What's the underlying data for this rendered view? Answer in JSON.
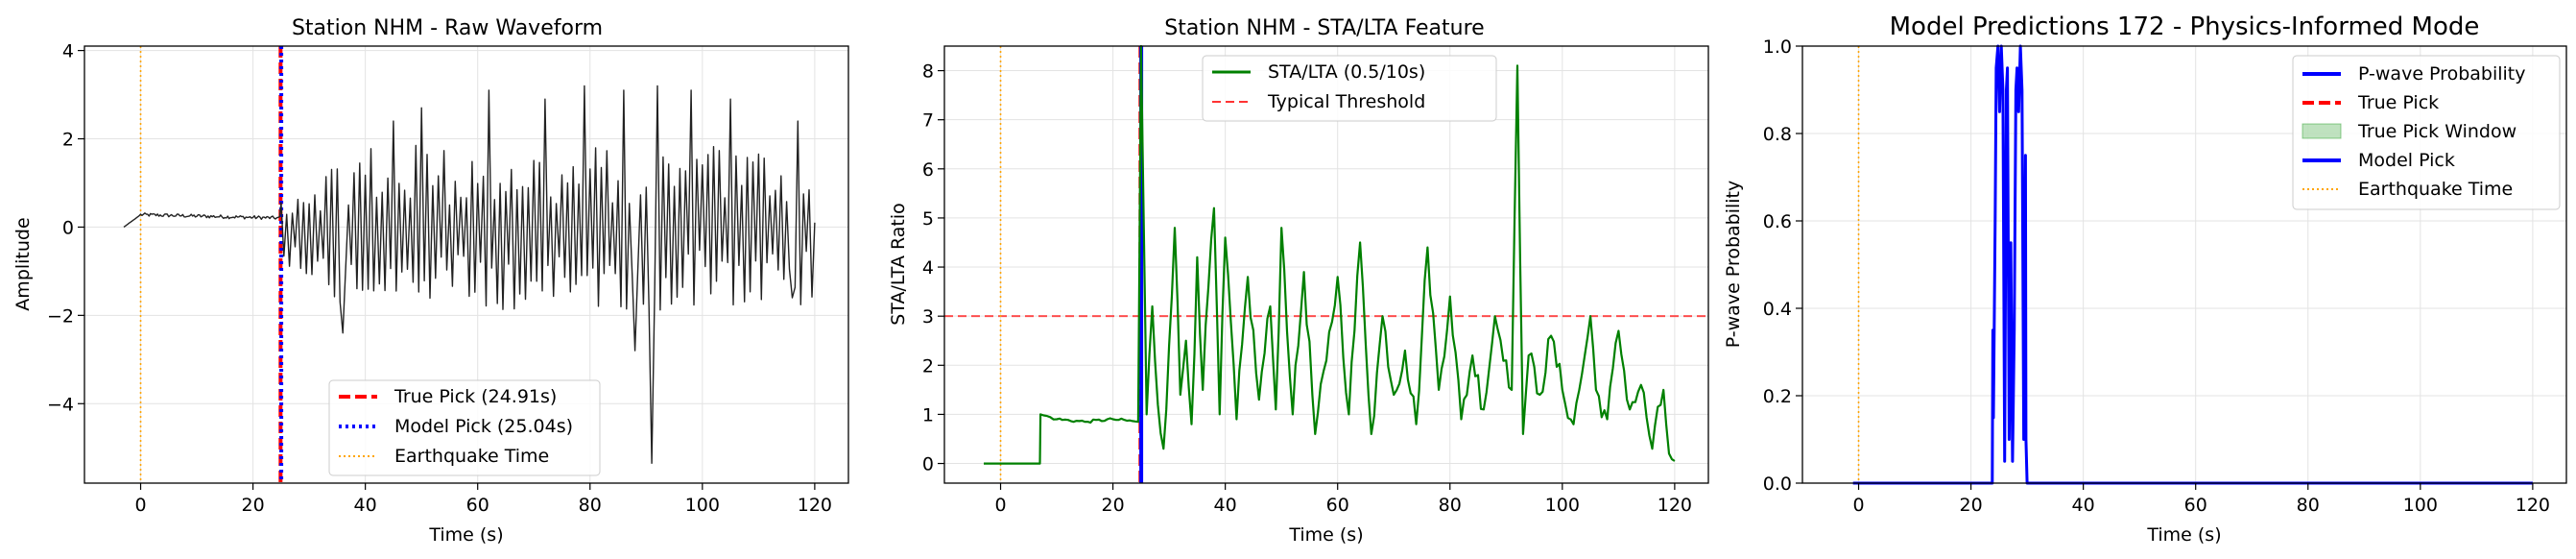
{
  "chart_data": [
    {
      "type": "line",
      "title": "Station NHM - Raw Waveform",
      "xlabel": "Time (s)",
      "ylabel": "Amplitude",
      "xlim": [
        -10,
        126
      ],
      "ylim": [
        -5.8,
        4.1
      ],
      "xticks": [
        0,
        20,
        40,
        60,
        80,
        100,
        120
      ],
      "yticks": [
        -4,
        -2,
        0,
        2,
        4
      ],
      "grid": true,
      "legend_position": "lower-center",
      "series": [
        {
          "name": "",
          "color": "#222222",
          "style": "waveform",
          "x_range": [
            -3,
            120
          ],
          "pre_pick_level": 0.28,
          "peaks": [
            [
              36,
              -2.4
            ],
            [
              45,
              2.4
            ],
            [
              50,
              2.7
            ],
            [
              62,
              3.1
            ],
            [
              72,
              2.9
            ],
            [
              79,
              3.2
            ],
            [
              86,
              3.1
            ],
            [
              88,
              -2.8
            ],
            [
              91,
              -5.35
            ],
            [
              92,
              3.2
            ],
            [
              98,
              3.1
            ],
            [
              105,
              2.9
            ],
            [
              116,
              -1.6
            ],
            [
              117,
              2.4
            ],
            [
              120,
              0.1
            ]
          ]
        }
      ],
      "markers": [
        {
          "name": "True Pick (24.91s)",
          "x": 24.91,
          "color": "#ff0000",
          "style": "dashed"
        },
        {
          "name": "Model Pick (25.04s)",
          "x": 25.04,
          "color": "#0000ff",
          "style": "dotted"
        },
        {
          "name": "Earthquake Time",
          "x": 0,
          "color": "#ffa500",
          "style": "dotted"
        }
      ],
      "legend": [
        {
          "label": "True Pick (24.91s)",
          "color": "#ff0000",
          "style": "dashed"
        },
        {
          "label": "Model Pick (25.04s)",
          "color": "#0000ff",
          "style": "dotted"
        },
        {
          "label": "Earthquake Time",
          "color": "#ffa500",
          "style": "dotted-thin"
        }
      ]
    },
    {
      "type": "line",
      "title": "Station NHM - STA/LTA Feature",
      "xlabel": "Time (s)",
      "ylabel": "STA/LTA Ratio",
      "xlim": [
        -10,
        126
      ],
      "ylim": [
        -0.4,
        8.5
      ],
      "xticks": [
        0,
        20,
        40,
        60,
        80,
        100,
        120
      ],
      "yticks": [
        0,
        1,
        2,
        3,
        4,
        5,
        6,
        7,
        8
      ],
      "grid": true,
      "legend_position": "upper-center",
      "series": [
        {
          "name": "STA/LTA (0.5/10s)",
          "color": "#008000",
          "x": [
            -3,
            7,
            7.1,
            10,
            15,
            20,
            24.5,
            25,
            26,
            27,
            28,
            29,
            30,
            31,
            32,
            33,
            34,
            35,
            36,
            37,
            38,
            39,
            40,
            42,
            44,
            46,
            48,
            49,
            50,
            52,
            54,
            56,
            58,
            60,
            62,
            64,
            66,
            68,
            70,
            72,
            74,
            76,
            78,
            80,
            82,
            84,
            86,
            88,
            90,
            91,
            92,
            93,
            94,
            96,
            98,
            100,
            102,
            104,
            105,
            106,
            108,
            110,
            112,
            114,
            116,
            118,
            119,
            120
          ],
          "y": [
            0,
            0,
            1.0,
            0.9,
            0.85,
            0.9,
            0.85,
            8.5,
            1.0,
            3.2,
            1.2,
            0.3,
            2.4,
            4.8,
            1.4,
            2.5,
            0.8,
            4.2,
            1.5,
            3.6,
            5.2,
            1.0,
            4.6,
            0.9,
            3.8,
            1.3,
            3.2,
            1.1,
            4.8,
            1.0,
            3.9,
            0.6,
            2.1,
            3.8,
            1.0,
            4.5,
            0.6,
            3.0,
            1.4,
            2.3,
            0.8,
            4.4,
            1.5,
            3.4,
            0.9,
            2.2,
            1.1,
            3.0,
            2.1,
            1.5,
            8.1,
            0.6,
            2.2,
            1.4,
            2.6,
            1.5,
            0.8,
            2.2,
            3.0,
            1.5,
            0.9,
            2.7,
            1.1,
            1.6,
            0.3,
            1.5,
            0.2,
            0.05
          ]
        }
      ],
      "reference_lines": [
        {
          "name": "Typical Threshold",
          "y": 3,
          "color": "#ff3333",
          "style": "dashed"
        }
      ],
      "markers": [
        {
          "x": 24.91,
          "color": "#ff0000",
          "style": "dashed"
        },
        {
          "x": 25.04,
          "color": "#0000ff",
          "style": "solid"
        },
        {
          "x": 0,
          "color": "#ffa500",
          "style": "dotted"
        }
      ],
      "legend": [
        {
          "label": "STA/LTA (0.5/10s)",
          "color": "#008000",
          "style": "solid"
        },
        {
          "label": "Typical Threshold",
          "color": "#ff3333",
          "style": "dashed"
        }
      ]
    },
    {
      "type": "line",
      "title": "Model Predictions 172 - Physics-Informed Mode",
      "xlabel": "Time (s)",
      "ylabel": "P-wave Probability",
      "xlim": [
        -10,
        126
      ],
      "ylim": [
        0,
        1.0
      ],
      "xticks": [
        0,
        20,
        40,
        60,
        80,
        100,
        120
      ],
      "yticks": [
        0.0,
        0.2,
        0.4,
        0.6,
        0.8,
        1.0
      ],
      "grid": true,
      "legend_position": "upper-right",
      "series": [
        {
          "name": "P-wave Probability",
          "color": "#0000ff",
          "x": [
            -1,
            23.8,
            23.9,
            24.0,
            24.3,
            24.5,
            24.8,
            25.1,
            25.4,
            25.7,
            26.0,
            26.3,
            26.5,
            26.8,
            27.1,
            27.4,
            27.7,
            28.0,
            28.2,
            28.5,
            28.8,
            29.1,
            29.4,
            29.7,
            29.8,
            30.0,
            120
          ],
          "y": [
            0,
            0,
            0.35,
            0.15,
            0.6,
            0.95,
            1.0,
            0.85,
            1.0,
            0.9,
            0.05,
            0.9,
            0.95,
            0.1,
            0.55,
            0.05,
            0.35,
            0.9,
            0.95,
            0.85,
            1.0,
            0.9,
            0.1,
            0.75,
            0.1,
            0,
            0
          ]
        }
      ],
      "markers": [
        {
          "x": 0,
          "color": "#ffa500",
          "style": "dotted"
        }
      ],
      "legend": [
        {
          "label": "P-wave Probability",
          "color": "#0000ff",
          "style": "solid"
        },
        {
          "label": "True Pick",
          "color": "#ff0000",
          "style": "dashed"
        },
        {
          "label": "True Pick Window",
          "color": "#2ca02c",
          "style": "patch"
        },
        {
          "label": "Model Pick",
          "color": "#0000ff",
          "style": "solid"
        },
        {
          "label": "Earthquake Time",
          "color": "#ffa500",
          "style": "dotted-thin"
        }
      ]
    }
  ]
}
